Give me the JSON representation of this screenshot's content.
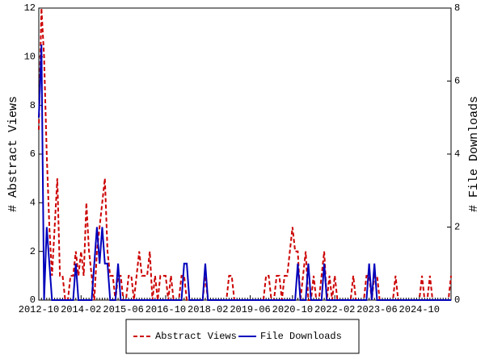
{
  "chart_data": {
    "type": "line",
    "y_label": "# Abstract Views",
    "y2_label": "# File Downloads",
    "categories": [
      "2012-10",
      null,
      null,
      null,
      null,
      null,
      null,
      null,
      null,
      null,
      null,
      null,
      null,
      null,
      null,
      null,
      "2014-02",
      null,
      null,
      null,
      null,
      null,
      null,
      null,
      null,
      null,
      null,
      null,
      null,
      null,
      null,
      null,
      "2015-06",
      null,
      null,
      null,
      null,
      null,
      null,
      null,
      null,
      null,
      null,
      null,
      null,
      null,
      null,
      null,
      "2016-10",
      null,
      null,
      null,
      null,
      null,
      null,
      null,
      null,
      null,
      null,
      null,
      null,
      null,
      null,
      null,
      "2018-02",
      null,
      null,
      null,
      null,
      null,
      null,
      null,
      null,
      null,
      null,
      null,
      null,
      null,
      null,
      null,
      "2019-06",
      null,
      null,
      null,
      null,
      null,
      null,
      null,
      null,
      null,
      null,
      null,
      null,
      null,
      null,
      null,
      "2020-10",
      null,
      null,
      null,
      null,
      null,
      null,
      null,
      null,
      null,
      null,
      null,
      null,
      null,
      null,
      null,
      "2022-02",
      null,
      null,
      null,
      null,
      null,
      null,
      null,
      null,
      null,
      null,
      null,
      null,
      null,
      null,
      null,
      "2023-06",
      null,
      null,
      null,
      null,
      null,
      null,
      null,
      null,
      null,
      null,
      null,
      null,
      null,
      null,
      null,
      "2024-10",
      null,
      null,
      null,
      null,
      null,
      null,
      null,
      null,
      null,
      null,
      null,
      null
    ],
    "series": [
      {
        "name": "Abstract Views",
        "color": "#cc0000",
        "dash": true,
        "values": [
          7,
          12,
          10,
          6,
          3,
          1,
          3,
          5,
          1,
          1,
          0,
          0,
          1,
          1,
          2,
          1,
          2,
          1,
          4,
          2,
          1,
          0,
          2,
          3,
          4,
          5,
          2,
          1,
          1,
          0,
          1,
          1,
          0,
          0,
          1,
          1,
          0,
          1,
          2,
          1,
          1,
          1,
          2,
          0,
          1,
          0,
          1,
          1,
          1,
          0,
          1,
          0,
          0,
          0,
          1,
          1,
          0,
          0,
          0,
          0,
          0,
          0,
          0,
          1,
          0,
          0,
          0,
          0,
          0,
          0,
          0,
          0,
          1,
          1,
          0,
          0,
          0,
          0,
          0,
          0,
          0,
          0,
          0,
          0,
          0,
          0,
          1,
          1,
          0,
          0,
          1,
          1,
          0,
          1,
          1,
          2,
          3,
          2,
          2,
          0,
          1,
          2,
          0,
          0,
          1,
          0,
          0,
          1,
          2,
          0,
          1,
          0,
          1,
          0,
          0,
          0,
          0,
          0,
          0,
          1,
          0,
          0,
          0,
          0,
          1,
          1,
          0,
          1,
          1,
          0,
          0,
          0,
          0,
          0,
          0,
          1,
          0,
          0,
          0,
          0,
          0,
          0,
          0,
          0,
          0,
          1,
          0,
          0,
          1,
          0,
          0,
          0,
          0,
          0,
          0,
          0,
          1
        ]
      },
      {
        "name": "File Downloads",
        "color": "#0000bb",
        "dash": false,
        "axis": "y2",
        "values": [
          5,
          7,
          0,
          2,
          1,
          0,
          0,
          0,
          0,
          0,
          0,
          0,
          0,
          0,
          1,
          0,
          0,
          0,
          0,
          0,
          0,
          1,
          2,
          1,
          2,
          1,
          1,
          0,
          0,
          0,
          1,
          0,
          0,
          0,
          0,
          0,
          0,
          0,
          0,
          0,
          0,
          0,
          0,
          0,
          0,
          0,
          0,
          0,
          0,
          0,
          0,
          0,
          0,
          0,
          0,
          1,
          1,
          0,
          0,
          0,
          0,
          0,
          0,
          1,
          0,
          0,
          0,
          0,
          0,
          0,
          0,
          0,
          0,
          0,
          0,
          0,
          0,
          0,
          0,
          0,
          0,
          0,
          0,
          0,
          0,
          0,
          0,
          0,
          0,
          0,
          0,
          0,
          0,
          0,
          0,
          0,
          0,
          0,
          1,
          0,
          0,
          0,
          1,
          0,
          0,
          0,
          0,
          0,
          1,
          0,
          0,
          0,
          0,
          0,
          0,
          0,
          0,
          0,
          0,
          0,
          0,
          0,
          0,
          0,
          0,
          1,
          0,
          1,
          0,
          0,
          0,
          0,
          0,
          0,
          0,
          0,
          0,
          0,
          0,
          0,
          0,
          0,
          0,
          0,
          0,
          0,
          0,
          0,
          0,
          0,
          0,
          0,
          0,
          0,
          0,
          0,
          0
        ]
      }
    ],
    "ylim": [
      0,
      12
    ],
    "yticks": [
      0,
      2,
      4,
      6,
      8,
      10,
      12
    ],
    "y2lim": [
      0,
      8
    ],
    "y2ticks": [
      0,
      2,
      4,
      6,
      8
    ],
    "grid": false,
    "legend": "bottom"
  }
}
